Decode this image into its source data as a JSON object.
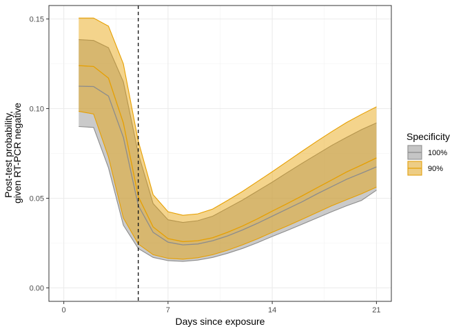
{
  "chart_data": {
    "type": "area",
    "title": "",
    "xlabel": "Days since exposure",
    "ylabel": [
      "Post-test probability,",
      "given RT-PCR negative"
    ],
    "xlim": [
      -1,
      22
    ],
    "ylim": [
      -0.0075,
      0.1575
    ],
    "x_ticks": [
      0,
      7,
      14,
      21
    ],
    "x_tick_labels": [
      "0",
      "7",
      "14",
      "21"
    ],
    "y_ticks": [
      0.0,
      0.05,
      0.1,
      0.15
    ],
    "y_tick_labels": [
      "0.00",
      "0.05",
      "0.10",
      "0.15"
    ],
    "vline": {
      "x": 5,
      "style": "dashed"
    },
    "grid": true,
    "legend": {
      "title": "Specificity",
      "position": "right",
      "entries": [
        "100%",
        "90%"
      ]
    },
    "x": [
      1,
      2,
      3,
      4,
      5,
      6,
      7,
      8,
      9,
      10,
      11,
      12,
      13,
      14,
      15,
      16,
      17,
      18,
      19,
      20,
      21
    ],
    "series": [
      {
        "name": "100%",
        "fill": "#aaaaaa",
        "line": "#8c8c8c",
        "median": [
          0.1125,
          0.1123,
          0.107,
          0.084,
          0.046,
          0.031,
          0.0255,
          0.024,
          0.0245,
          0.0263,
          0.029,
          0.0323,
          0.036,
          0.04,
          0.044,
          0.048,
          0.0524,
          0.0565,
          0.0606,
          0.064,
          0.0675
        ],
        "lower": [
          0.09,
          0.0895,
          0.067,
          0.035,
          0.022,
          0.017,
          0.0152,
          0.0148,
          0.0155,
          0.017,
          0.0193,
          0.022,
          0.0252,
          0.0287,
          0.032,
          0.0355,
          0.039,
          0.0425,
          0.0458,
          0.0488,
          0.0545
        ],
        "upper": [
          0.1385,
          0.138,
          0.134,
          0.115,
          0.075,
          0.047,
          0.038,
          0.0365,
          0.0375,
          0.04,
          0.0445,
          0.049,
          0.054,
          0.059,
          0.0643,
          0.0695,
          0.0745,
          0.0795,
          0.084,
          0.0883,
          0.092
        ]
      },
      {
        "name": "90%",
        "fill": "#e69f00",
        "line": "#e69f00",
        "median": [
          0.124,
          0.1235,
          0.117,
          0.092,
          0.051,
          0.034,
          0.0275,
          0.0258,
          0.0263,
          0.028,
          0.031,
          0.0345,
          0.0385,
          0.0428,
          0.047,
          0.0513,
          0.0558,
          0.0602,
          0.0647,
          0.0685,
          0.0725
        ],
        "lower": [
          0.0985,
          0.097,
          0.073,
          0.039,
          0.0245,
          0.0185,
          0.0165,
          0.016,
          0.0168,
          0.0185,
          0.021,
          0.024,
          0.0273,
          0.031,
          0.0345,
          0.0382,
          0.042,
          0.0458,
          0.0492,
          0.0525,
          0.0562
        ],
        "upper": [
          0.1505,
          0.1505,
          0.146,
          0.125,
          0.082,
          0.052,
          0.0425,
          0.0405,
          0.0413,
          0.044,
          0.0488,
          0.0538,
          0.0593,
          0.0648,
          0.0705,
          0.0762,
          0.0818,
          0.0872,
          0.0923,
          0.0968,
          0.101
        ]
      }
    ]
  }
}
